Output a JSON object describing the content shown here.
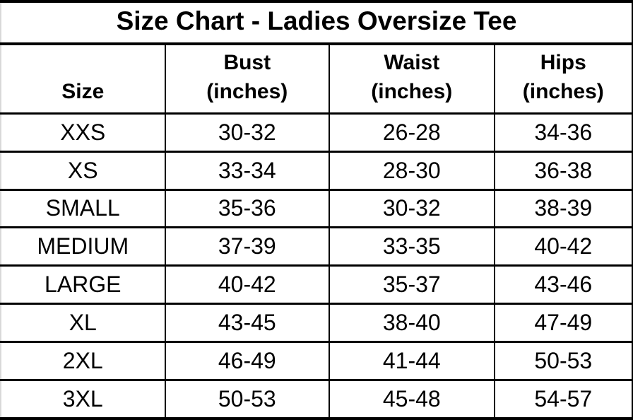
{
  "title": "Size Chart - Ladies Oversize Tee",
  "table": {
    "columns": [
      {
        "label": "Size",
        "unit": ""
      },
      {
        "label": "Bust",
        "unit": "(inches)"
      },
      {
        "label": "Waist",
        "unit": "(inches)"
      },
      {
        "label": "Hips",
        "unit": "(inches)"
      }
    ],
    "rows": [
      [
        "XXS",
        "30-32",
        "26-28",
        "34-36"
      ],
      [
        "XS",
        "33-34",
        "28-30",
        "36-38"
      ],
      [
        "SMALL",
        "35-36",
        "30-32",
        "38-39"
      ],
      [
        "MEDIUM",
        "37-39",
        "33-35",
        "40-42"
      ],
      [
        "LARGE",
        "40-42",
        "35-37",
        "43-46"
      ],
      [
        "XL",
        "43-45",
        "38-40",
        "47-49"
      ],
      [
        "2XL",
        "46-49",
        "41-44",
        "50-53"
      ],
      [
        "3XL",
        "50-53",
        "45-48",
        "54-57"
      ]
    ]
  },
  "colors": {
    "text": "#000000",
    "background": "#ffffff",
    "border": "#000000"
  },
  "chart_data": {
    "type": "table",
    "title": "Size Chart - Ladies Oversize Tee",
    "columns": [
      "Size",
      "Bust (inches)",
      "Waist (inches)",
      "Hips (inches)"
    ],
    "rows": [
      [
        "XXS",
        "30-32",
        "26-28",
        "34-36"
      ],
      [
        "XS",
        "33-34",
        "28-30",
        "36-38"
      ],
      [
        "SMALL",
        "35-36",
        "30-32",
        "38-39"
      ],
      [
        "MEDIUM",
        "37-39",
        "33-35",
        "40-42"
      ],
      [
        "LARGE",
        "40-42",
        "35-37",
        "43-46"
      ],
      [
        "XL",
        "43-45",
        "38-40",
        "47-49"
      ],
      [
        "2XL",
        "46-49",
        "41-44",
        "50-53"
      ],
      [
        "3XL",
        "50-53",
        "45-48",
        "54-57"
      ]
    ]
  }
}
